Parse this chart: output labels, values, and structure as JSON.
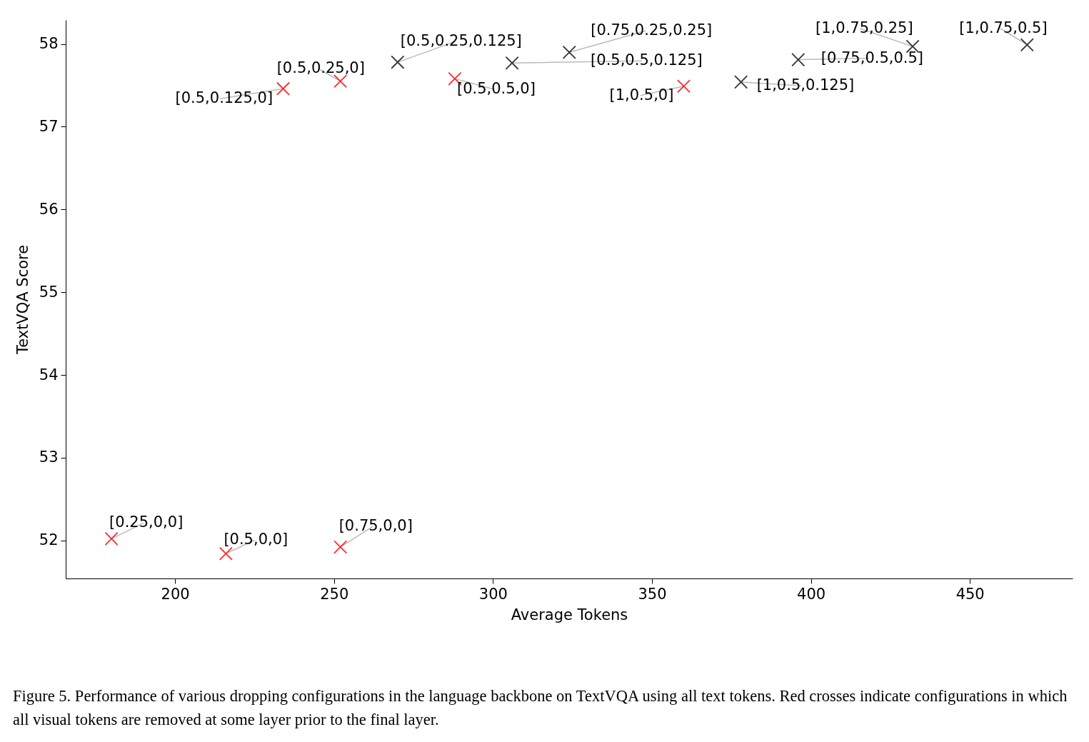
{
  "chart_data": {
    "type": "scatter",
    "xlabel": "Average Tokens",
    "ylabel": "TextVQA Score",
    "xlim": [
      165.6,
      482.3
    ],
    "ylim": [
      51.54,
      58.29
    ],
    "xticks": [
      200,
      250,
      300,
      350,
      400,
      450
    ],
    "yticks": [
      52,
      53,
      54,
      55,
      56,
      57,
      58
    ],
    "grid": false,
    "marker": "cross",
    "series": [
      {
        "color": "#ff2a2a",
        "x": [
          180,
          216,
          252,
          234,
          252,
          288,
          360
        ],
        "values": [
          52.02,
          51.84,
          51.92,
          57.46,
          57.55,
          57.58,
          57.49
        ]
      },
      {
        "color": "#333333",
        "x": [
          270,
          306,
          324,
          378,
          396,
          432,
          468
        ],
        "values": [
          57.78,
          57.77,
          57.9,
          57.54,
          57.81,
          57.97,
          57.99
        ]
      }
    ],
    "annotations": [
      {
        "text": "[0.25,0,0]",
        "x": 180,
        "y": 52.02
      },
      {
        "text": "[0.5,0,0]",
        "x": 216,
        "y": 51.84
      },
      {
        "text": "[0.75,0,0]",
        "x": 252,
        "y": 51.92
      },
      {
        "text": "[0.5,0.125,0]",
        "x": 234,
        "y": 57.46
      },
      {
        "text": "[0.5,0.25,0]",
        "x": 252,
        "y": 57.55
      },
      {
        "text": "[0.5,0.5,0]",
        "x": 288,
        "y": 57.58
      },
      {
        "text": "[1,0.5,0]",
        "x": 360,
        "y": 57.49
      },
      {
        "text": "[0.5,0.25,0.125]",
        "x": 270,
        "y": 57.78
      },
      {
        "text": "[0.5,0.5,0.125]",
        "x": 306,
        "y": 57.77
      },
      {
        "text": "[0.75,0.25,0.25]",
        "x": 324,
        "y": 57.9
      },
      {
        "text": "[1,0.5,0.125]",
        "x": 378,
        "y": 57.54
      },
      {
        "text": "[0.75,0.5,0.5]",
        "x": 396,
        "y": 57.81
      },
      {
        "text": "[1,0.75,0.25]",
        "x": 432,
        "y": 57.97
      },
      {
        "text": "[1,0.75,0.5]",
        "x": 468,
        "y": 57.99
      },
      "Figure 5. Performance of various dropping configurations in the language backbone on TextVQA using all text tokens. Red crosses indicate configurations in which all visual tokens are removed at some layer prior to the final layer."
    ]
  }
}
